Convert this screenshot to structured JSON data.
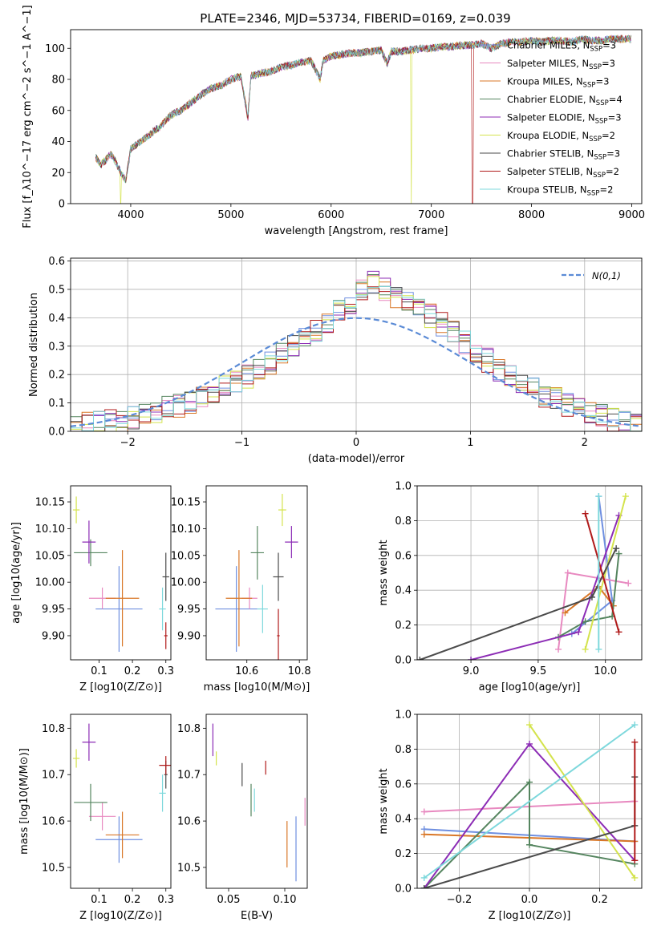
{
  "palette": {
    "Chabrier MILES": "#6f8fe0",
    "Salpeter MILES": "#e889c0",
    "Kroupa MILES": "#d97727",
    "Chabrier ELODIE": "#55855f",
    "Salpeter ELODIE": "#8c2cb5",
    "Kroupa ELODIE": "#d4e34d",
    "Chabrier STELIB": "#4b4b4b",
    "Salpeter STELIB": "#b01a1a",
    "Kroupa STELIB": "#7dd8dc"
  },
  "chart_data": [
    {
      "type": "line",
      "title": "PLATE=2346, MJD=53734, FIBERID=0169, z=0.039",
      "xlabel": "wavelength [Angstrom, rest frame]",
      "ylabel": "Flux [f_λ10^−17 erg cm^−2 s^−1 A^−1]",
      "xlim": [
        3400,
        9100
      ],
      "ylim": [
        0,
        112
      ],
      "xticks": [
        4000,
        5000,
        6000,
        7000,
        8000,
        9000
      ],
      "yticks": [
        0,
        20,
        40,
        60,
        80,
        100
      ],
      "legend_position": "top-right",
      "spectrum": {
        "x": [
          3650,
          3700,
          3750,
          3800,
          3850,
          3900,
          3950,
          4000,
          4100,
          4200,
          4300,
          4400,
          4500,
          4600,
          4700,
          4800,
          4900,
          5000,
          5100,
          5170,
          5200,
          5300,
          5400,
          5500,
          5600,
          5700,
          5800,
          5890,
          5920,
          6000,
          6100,
          6200,
          6300,
          6400,
          6500,
          6560,
          6600,
          6700,
          6800,
          6900,
          7000,
          7100,
          7200,
          7300,
          7400,
          7500,
          7600,
          7700,
          7800,
          7900,
          8000,
          8100,
          8200,
          8300,
          8400,
          8500,
          8600,
          8700,
          8800,
          8900,
          9000
        ],
        "y": [
          30,
          25,
          28,
          32,
          27,
          20,
          15,
          35,
          40,
          45,
          50,
          57,
          60,
          65,
          70,
          74,
          76,
          80,
          82,
          55,
          82,
          84,
          85,
          88,
          89,
          91,
          92,
          80,
          92,
          95,
          96,
          97,
          97,
          98,
          99,
          90,
          98,
          98,
          99,
          100,
          100,
          101,
          101,
          102,
          102,
          103,
          100,
          103,
          104,
          104,
          105,
          104,
          105,
          105,
          104,
          106,
          105,
          105,
          106,
          106,
          106
        ]
      },
      "series": [
        {
          "name": "Chabrier MILES, N_SSP=3"
        },
        {
          "name": "Salpeter MILES, N_SSP=3"
        },
        {
          "name": "Kroupa MILES, N_SSP=3"
        },
        {
          "name": "Chabrier ELODIE, N_SSP=4"
        },
        {
          "name": "Salpeter ELODIE, N_SSP=3"
        },
        {
          "name": "Kroupa ELODIE, N_SSP=2"
        },
        {
          "name": "Chabrier STELIB, N_SSP=3"
        },
        {
          "name": "Salpeter STELIB, N_SSP=2"
        },
        {
          "name": "Kroupa STELIB, N_SSP=2"
        }
      ],
      "drops": {
        "Kroupa ELODIE": [
          3900,
          6800
        ],
        "Salpeter STELIB": [
          7410
        ]
      }
    },
    {
      "type": "bar",
      "xlabel": "(data-model)/error",
      "ylabel": "Normed distribution",
      "xlim": [
        -2.5,
        2.5
      ],
      "ylim": [
        0,
        0.61
      ],
      "xticks": [
        -2,
        -1,
        0,
        1,
        2
      ],
      "yticks": [
        0.0,
        0.1,
        0.2,
        0.3,
        0.4,
        0.5,
        0.6
      ],
      "grid": true,
      "legend": "N(0,1)",
      "legend_position": "top-right",
      "bin_edges_range": [
        -2.5,
        2.5
      ],
      "bin_width": 0.1,
      "envelope": [
        0.02,
        0.025,
        0.03,
        0.035,
        0.04,
        0.05,
        0.06,
        0.07,
        0.08,
        0.09,
        0.1,
        0.12,
        0.14,
        0.15,
        0.17,
        0.19,
        0.21,
        0.24,
        0.27,
        0.3,
        0.33,
        0.36,
        0.39,
        0.42,
        0.45,
        0.5,
        0.52,
        0.5,
        0.48,
        0.46,
        0.44,
        0.41,
        0.38,
        0.35,
        0.31,
        0.28,
        0.25,
        0.22,
        0.19,
        0.17,
        0.15,
        0.13,
        0.11,
        0.09,
        0.08,
        0.07,
        0.05,
        0.04,
        0.03,
        0.02
      ]
    },
    {
      "type": "scatter",
      "xlabel": "Z [log10(Z/Z⊙)]",
      "ylabel": "age  [log10(age/yr)]",
      "xlim": [
        0.015,
        0.315
      ],
      "ylim": [
        9.855,
        10.18
      ],
      "xticks": [
        0.1,
        0.2,
        0.3
      ],
      "yticks": [
        9.9,
        9.95,
        10.0,
        10.05,
        10.1,
        10.15
      ],
      "points": [
        {
          "s": "Chabrier MILES",
          "x": 0.16,
          "xe": 0.07,
          "y": 9.95,
          "ye": 0.08
        },
        {
          "s": "Salpeter MILES",
          "x": 0.11,
          "xe": 0.04,
          "y": 9.97,
          "ye": 0.02
        },
        {
          "s": "Kroupa MILES",
          "x": 0.17,
          "xe": 0.05,
          "y": 9.97,
          "ye": 0.09
        },
        {
          "s": "Chabrier ELODIE",
          "x": 0.075,
          "xe": 0.05,
          "y": 10.055,
          "ye": 0.025
        },
        {
          "s": "Salpeter ELODIE",
          "x": 0.07,
          "xe": 0.02,
          "y": 10.075,
          "ye": 0.04
        },
        {
          "s": "Kroupa ELODIE",
          "x": 0.032,
          "xe": 0.01,
          "y": 10.135,
          "ye": 0.025
        },
        {
          "s": "Chabrier STELIB",
          "x": 0.3,
          "xe": 0.01,
          "y": 10.01,
          "ye": 0.045
        },
        {
          "s": "Salpeter STELIB",
          "x": 0.3,
          "xe": 0.005,
          "y": 9.9,
          "ye": 0.025
        },
        {
          "s": "Kroupa STELIB",
          "x": 0.29,
          "xe": 0.01,
          "y": 9.95,
          "ye": 0.04
        }
      ]
    },
    {
      "type": "scatter",
      "xlabel": "mass [log10(M/M⊙)]",
      "ylabel": "",
      "xlim": [
        10.445,
        10.83
      ],
      "ylim": [
        9.855,
        10.18
      ],
      "xticks": [
        10.6,
        10.8
      ],
      "yticks": [
        9.9,
        9.95,
        10.0,
        10.05,
        10.1,
        10.15
      ],
      "points": [
        {
          "s": "Chabrier MILES",
          "x": 10.56,
          "xe": 0.08,
          "y": 9.95,
          "ye": 0.08
        },
        {
          "s": "Salpeter MILES",
          "x": 10.61,
          "xe": 0.03,
          "y": 9.97,
          "ye": 0.02
        },
        {
          "s": "Kroupa MILES",
          "x": 10.57,
          "xe": 0.05,
          "y": 9.97,
          "ye": 0.09
        },
        {
          "s": "Chabrier ELODIE",
          "x": 10.64,
          "xe": 0.025,
          "y": 10.055,
          "ye": 0.05
        },
        {
          "s": "Salpeter ELODIE",
          "x": 10.77,
          "xe": 0.025,
          "y": 10.075,
          "ye": 0.03
        },
        {
          "s": "Kroupa ELODIE",
          "x": 10.735,
          "xe": 0.015,
          "y": 10.135,
          "ye": 0.03
        },
        {
          "s": "Chabrier STELIB",
          "x": 10.72,
          "xe": 0.02,
          "y": 10.01,
          "ye": 0.045
        },
        {
          "s": "Salpeter STELIB",
          "x": 10.72,
          "xe": 0.005,
          "y": 9.9,
          "ye": 0.05
        },
        {
          "s": "Kroupa STELIB",
          "x": 10.66,
          "xe": 0.02,
          "y": 9.95,
          "ye": 0.045
        }
      ]
    },
    {
      "type": "line",
      "xlabel": "age  [log10(age/yr)]",
      "ylabel": "mass weight",
      "xlim": [
        8.6,
        10.27
      ],
      "ylim": [
        0,
        1
      ],
      "xticks": [
        9.0,
        9.5,
        10.0
      ],
      "yticks": [
        0.0,
        0.2,
        0.4,
        0.6,
        0.8,
        1.0
      ],
      "grid": true,
      "series": [
        {
          "s": "Chabrier MILES",
          "x": [
            9.75,
            10.05,
            9.95
          ],
          "y": [
            0.15,
            0.34,
            0.94
          ]
        },
        {
          "s": "Salpeter MILES",
          "x": [
            9.65,
            9.72,
            10.17
          ],
          "y": [
            0.06,
            0.5,
            0.44
          ]
        },
        {
          "s": "Kroupa MILES",
          "x": [
            9.7,
            9.95,
            10.06
          ],
          "y": [
            0.27,
            0.42,
            0.31
          ]
        },
        {
          "s": "Chabrier ELODIE",
          "x": [
            9.65,
            9.85,
            10.05,
            10.1
          ],
          "y": [
            0.13,
            0.22,
            0.25,
            0.61
          ]
        },
        {
          "s": "Salpeter ELODIE",
          "x": [
            9.0,
            9.8,
            10.1
          ],
          "y": [
            0.0,
            0.16,
            0.83
          ]
        },
        {
          "s": "Kroupa ELODIE",
          "x": [
            9.85,
            10.15
          ],
          "y": [
            0.06,
            0.94
          ]
        },
        {
          "s": "Chabrier STELIB",
          "x": [
            8.62,
            9.9,
            10.08
          ],
          "y": [
            0.0,
            0.36,
            0.64
          ]
        },
        {
          "s": "Salpeter STELIB",
          "x": [
            9.85,
            10.1
          ],
          "y": [
            0.84,
            0.16
          ]
        },
        {
          "s": "Kroupa STELIB",
          "x": [
            9.95,
            9.95
          ],
          "y": [
            0.06,
            0.94
          ]
        }
      ]
    },
    {
      "type": "scatter",
      "xlabel": "Z [log10(Z/Z⊙)]",
      "ylabel": "mass [log10(M/M⊙)]",
      "xlim": [
        0.015,
        0.315
      ],
      "ylim": [
        10.455,
        10.83
      ],
      "xticks": [
        0.1,
        0.2,
        0.3
      ],
      "yticks": [
        10.5,
        10.6,
        10.7,
        10.8
      ],
      "points": [
        {
          "s": "Chabrier MILES",
          "x": 0.16,
          "xe": 0.07,
          "y": 10.56,
          "ye": 0.05
        },
        {
          "s": "Salpeter MILES",
          "x": 0.11,
          "xe": 0.04,
          "y": 10.61,
          "ye": 0.03
        },
        {
          "s": "Kroupa MILES",
          "x": 0.17,
          "xe": 0.05,
          "y": 10.57,
          "ye": 0.05
        },
        {
          "s": "Chabrier ELODIE",
          "x": 0.075,
          "xe": 0.05,
          "y": 10.64,
          "ye": 0.04
        },
        {
          "s": "Salpeter ELODIE",
          "x": 0.07,
          "xe": 0.02,
          "y": 10.77,
          "ye": 0.04
        },
        {
          "s": "Kroupa ELODIE",
          "x": 0.032,
          "xe": 0.01,
          "y": 10.735,
          "ye": 0.02
        },
        {
          "s": "Chabrier STELIB",
          "x": 0.3,
          "xe": 0.005,
          "y": 10.7,
          "ye": 0.03
        },
        {
          "s": "Salpeter STELIB",
          "x": 0.3,
          "xe": 0.02,
          "y": 10.72,
          "ye": 0.02
        },
        {
          "s": "Kroupa STELIB",
          "x": 0.29,
          "xe": 0.01,
          "y": 10.66,
          "ye": 0.04
        }
      ]
    },
    {
      "type": "scatter",
      "xlabel": "E(B-V)",
      "ylabel": "",
      "xlim": [
        0.03,
        0.12
      ],
      "ylim": [
        10.455,
        10.83
      ],
      "xticks": [
        0.05,
        0.1
      ],
      "yticks": [
        10.5,
        10.6,
        10.7,
        10.8
      ],
      "points": [
        {
          "s": "Chabrier MILES",
          "x": 0.11,
          "y": 10.54,
          "ye": 0.07
        },
        {
          "s": "Salpeter MILES",
          "x": 0.118,
          "y": 10.62,
          "ye": 0.03
        },
        {
          "s": "Kroupa MILES",
          "x": 0.102,
          "y": 10.55,
          "ye": 0.05
        },
        {
          "s": "Chabrier ELODIE",
          "x": 0.07,
          "y": 10.645,
          "ye": 0.035
        },
        {
          "s": "Salpeter ELODIE",
          "x": 0.036,
          "y": 10.775,
          "ye": 0.035
        },
        {
          "s": "Kroupa ELODIE",
          "x": 0.039,
          "y": 10.735,
          "ye": 0.015
        },
        {
          "s": "Chabrier STELIB",
          "x": 0.062,
          "y": 10.7,
          "ye": 0.025
        },
        {
          "s": "Salpeter STELIB",
          "x": 0.083,
          "y": 10.715,
          "ye": 0.015
        },
        {
          "s": "Kroupa STELIB",
          "x": 0.073,
          "y": 10.645,
          "ye": 0.025
        }
      ]
    },
    {
      "type": "line",
      "xlabel": "Z [log10(Z/Z⊙)]",
      "ylabel": "mass weight",
      "xlim": [
        -0.32,
        0.32
      ],
      "ylim": [
        0,
        1
      ],
      "xticks": [
        -0.2,
        0.0,
        0.2
      ],
      "yticks": [
        0.0,
        0.2,
        0.4,
        0.6,
        0.8,
        1.0
      ],
      "grid": true,
      "series": [
        {
          "s": "Chabrier MILES",
          "x": [
            -0.3,
            0.3
          ],
          "y": [
            0.34,
            0.27
          ]
        },
        {
          "s": "Salpeter MILES",
          "x": [
            -0.3,
            0.3
          ],
          "y": [
            0.44,
            0.5
          ]
        },
        {
          "s": "Kroupa MILES",
          "x": [
            -0.3,
            0.3
          ],
          "y": [
            0.31,
            0.27
          ]
        },
        {
          "s": "Chabrier ELODIE",
          "x": [
            -0.3,
            0.0,
            0.0,
            0.3
          ],
          "y": [
            0.0,
            0.61,
            0.25,
            0.14
          ]
        },
        {
          "s": "Salpeter ELODIE",
          "x": [
            -0.3,
            0.0,
            0.3
          ],
          "y": [
            0.0,
            0.83,
            0.16
          ]
        },
        {
          "s": "Kroupa ELODIE",
          "x": [
            0.0,
            0.3
          ],
          "y": [
            0.94,
            0.06
          ]
        },
        {
          "s": "Chabrier STELIB",
          "x": [
            -0.3,
            0.3,
            0.3
          ],
          "y": [
            0.0,
            0.36,
            0.64
          ]
        },
        {
          "s": "Salpeter STELIB",
          "x": [
            0.3,
            0.3
          ],
          "y": [
            0.84,
            0.16
          ]
        },
        {
          "s": "Kroupa STELIB",
          "x": [
            -0.3,
            0.3
          ],
          "y": [
            0.06,
            0.94
          ]
        }
      ]
    }
  ],
  "text": {
    "title": "PLATE=2346, MJD=53734, FIBERID=0169, z=0.039",
    "norm_legend": "N(0,1)"
  }
}
